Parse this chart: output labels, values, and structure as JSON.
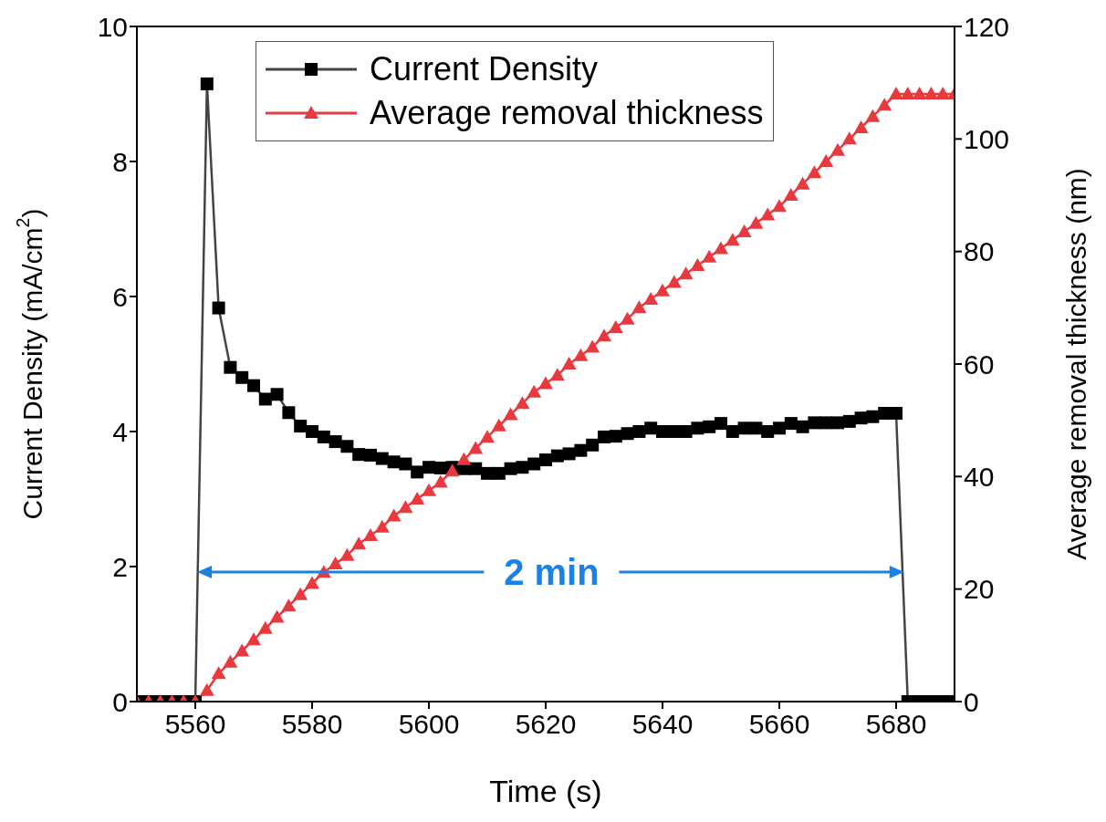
{
  "chart_data": {
    "type": "line",
    "xlabel": "Time (s)",
    "ylabel": "Current Density (mA/cm$^{2}$)",
    "y2label": "Average removal thickness (nm)",
    "x": [
      5550,
      5552,
      5554,
      5556,
      5558,
      5560,
      5562,
      5564,
      5566,
      5568,
      5570,
      5572,
      5574,
      5576,
      5578,
      5580,
      5582,
      5584,
      5586,
      5588,
      5590,
      5592,
      5594,
      5596,
      5598,
      5600,
      5602,
      5604,
      5606,
      5608,
      5610,
      5612,
      5614,
      5616,
      5618,
      5620,
      5622,
      5624,
      5626,
      5628,
      5630,
      5632,
      5634,
      5636,
      5638,
      5640,
      5642,
      5644,
      5646,
      5648,
      5650,
      5652,
      5654,
      5656,
      5658,
      5660,
      5662,
      5664,
      5666,
      5668,
      5670,
      5672,
      5674,
      5676,
      5678,
      5680,
      5682,
      5684,
      5686,
      5688,
      5690
    ],
    "series": [
      {
        "name": "Current Density",
        "color": "#000000",
        "marker": "square",
        "values": [
          0,
          0,
          0,
          0,
          0,
          0,
          9.15,
          5.83,
          4.95,
          4.8,
          4.68,
          4.48,
          4.55,
          4.28,
          4.08,
          4.0,
          3.92,
          3.85,
          3.78,
          3.66,
          3.65,
          3.6,
          3.55,
          3.52,
          3.4,
          3.47,
          3.46,
          3.47,
          3.45,
          3.45,
          3.38,
          3.38,
          3.45,
          3.47,
          3.52,
          3.58,
          3.64,
          3.67,
          3.72,
          3.8,
          3.92,
          3.93,
          3.97,
          4.0,
          4.05,
          4.0,
          4.0,
          4.0,
          4.05,
          4.07,
          4.12,
          4.0,
          4.05,
          4.05,
          4.0,
          4.05,
          4.12,
          4.07,
          4.13,
          4.13,
          4.13,
          4.15,
          4.2,
          4.22,
          4.27,
          4.27,
          0,
          0,
          0,
          0,
          0
        ]
      },
      {
        "name": "Average removal thickness",
        "color": "#e8393f",
        "marker": "triangle",
        "axis": "y2",
        "values": [
          0,
          0,
          0,
          0,
          0,
          0,
          2,
          5,
          7,
          9,
          11,
          13,
          15,
          17,
          19,
          21,
          23,
          24.5,
          26,
          28,
          29.5,
          31,
          33,
          34.5,
          36,
          37.5,
          39,
          41,
          43,
          45,
          47,
          49,
          51,
          53,
          55,
          56.5,
          58,
          60,
          61.5,
          63,
          65,
          66.5,
          68,
          70,
          71.5,
          73,
          74.5,
          76,
          77.5,
          79,
          80.5,
          82,
          83.5,
          85,
          86.5,
          88,
          90,
          92,
          94,
          96,
          98,
          100,
          102,
          104,
          106,
          108,
          108,
          108,
          108,
          108,
          108
        ]
      }
    ],
    "xlim": [
      5550,
      5690
    ],
    "xticks": [
      5560,
      5580,
      5600,
      5620,
      5640,
      5660,
      5680
    ],
    "ylim": [
      0,
      10
    ],
    "yticks": [
      0,
      2,
      4,
      6,
      8,
      10
    ],
    "y2lim": [
      0,
      120
    ],
    "y2ticks": [
      0,
      20,
      40,
      60,
      80,
      100,
      120
    ],
    "legend": "top",
    "annotations": [
      {
        "text": "2 min",
        "x": 5682,
        "y": 1.92
      }
    ]
  }
}
